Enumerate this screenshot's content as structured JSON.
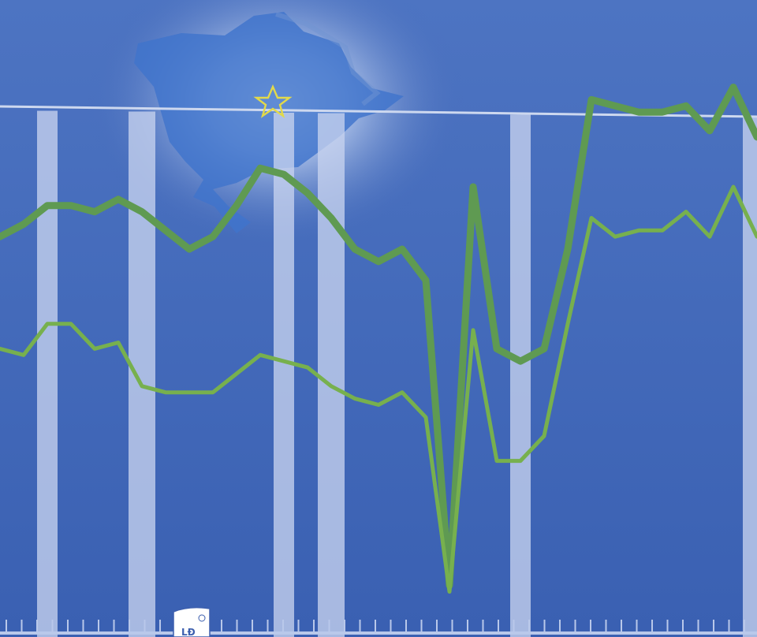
{
  "colors": {
    "background": "#3f66b8",
    "bar": "#c7d2ee",
    "map": "#3f74cc",
    "glow": "#e9f4ff",
    "star": "#e2d94a",
    "series_dark": "#5f9a52",
    "series_light": "#77b04e",
    "logo_fill": "#ffffff",
    "logo_text": "#3d5fae"
  },
  "logo": {
    "text": "LĐ"
  },
  "chart_data": {
    "type": "line",
    "title": "",
    "xlabel": "",
    "ylabel": "",
    "grid": false,
    "legend": "none",
    "ylim": [
      0,
      100
    ],
    "x": [
      0,
      1,
      2,
      3,
      4,
      5,
      6,
      7,
      8,
      9,
      10,
      11,
      12,
      13,
      14,
      15,
      16,
      17,
      18,
      19,
      20,
      21,
      22,
      23,
      24,
      25,
      26,
      27,
      28,
      29,
      30,
      31,
      32
    ],
    "series": [
      {
        "color": "#5f9a52",
        "values": [
          62,
          64,
          67,
          67,
          66,
          68,
          66,
          63,
          60,
          62,
          67,
          73,
          72,
          69,
          65,
          60,
          58,
          60,
          55,
          6,
          70,
          44,
          42,
          44,
          60,
          84,
          83,
          82,
          82,
          83,
          79,
          86,
          78
        ]
      },
      {
        "color": "#77b04e",
        "values": [
          44,
          43,
          48,
          48,
          44,
          45,
          38,
          37,
          37,
          37,
          40,
          43,
          42,
          41,
          38,
          36,
          35,
          37,
          33,
          5,
          47,
          26,
          26,
          30,
          48,
          65,
          62,
          63,
          63,
          66,
          62,
          70,
          62
        ]
      }
    ],
    "bars_x": [
      2,
      6,
      12,
      14,
      22,
      33
    ]
  }
}
